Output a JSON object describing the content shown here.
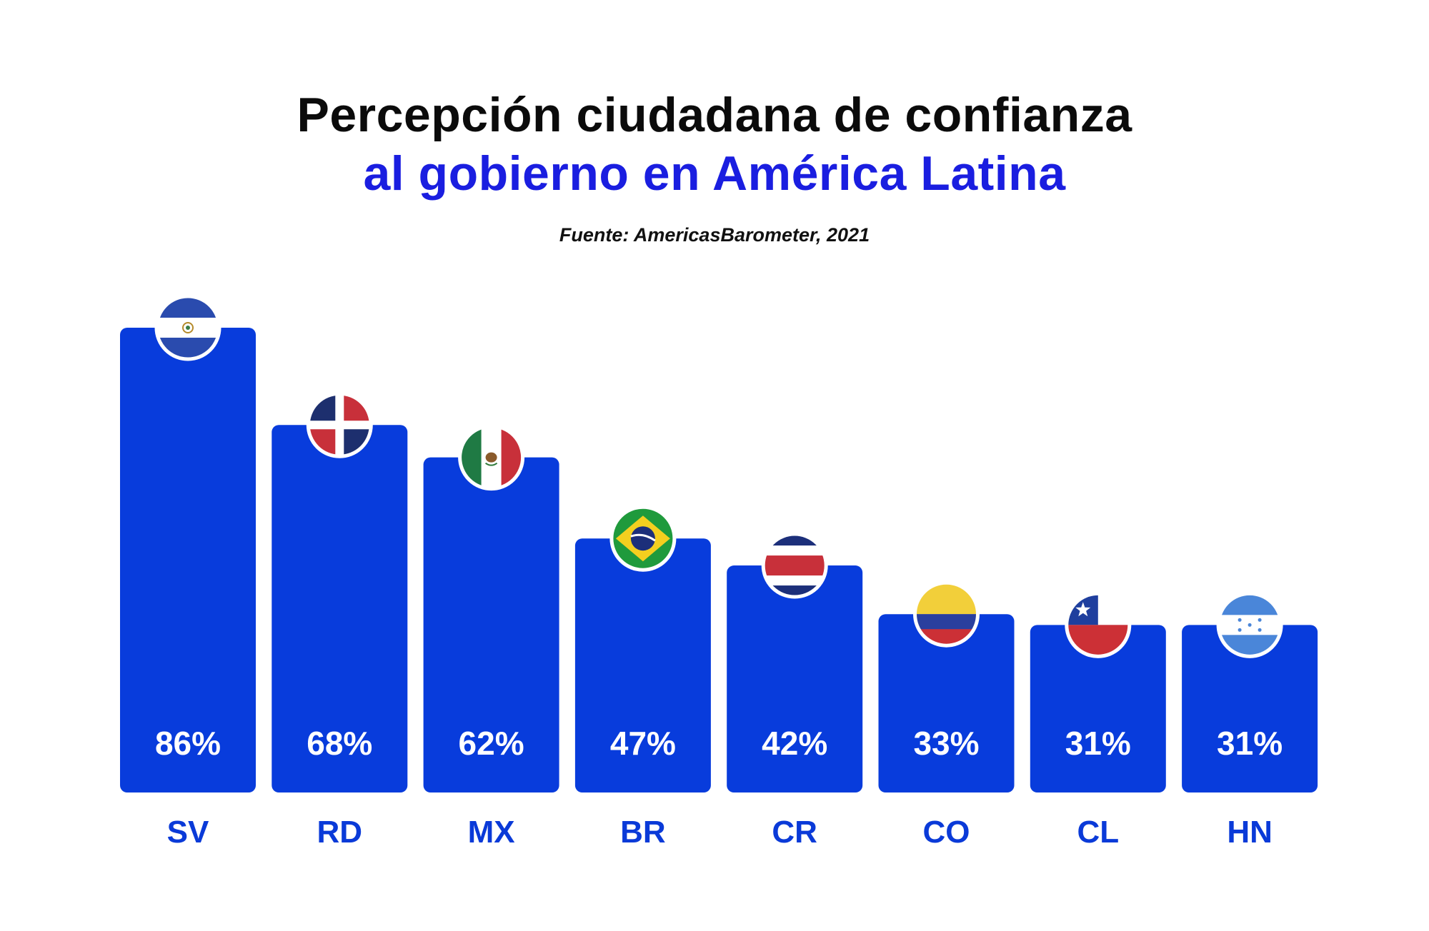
{
  "title": {
    "line1": "Percepción ciudadana de confianza",
    "line2": "al gobierno en América Latina"
  },
  "source": "Fuente: AmericasBarometer, 2021",
  "colors": {
    "bar": "#083cdc",
    "accent_text": "#1a1ee0",
    "category_label": "#0a3ad8",
    "value_label": "#ffffff",
    "title_dark": "#0b0b0b"
  },
  "chart_data": {
    "type": "bar",
    "categories": [
      "SV",
      "RD",
      "MX",
      "BR",
      "CR",
      "CO",
      "CL",
      "HN"
    ],
    "values": [
      86,
      68,
      62,
      47,
      42,
      33,
      31,
      31
    ],
    "value_labels": [
      "86%",
      "68%",
      "62%",
      "47%",
      "42%",
      "33%",
      "31%",
      "31%"
    ],
    "flags": [
      "el-salvador-flag-icon",
      "dominican-republic-flag-icon",
      "mexico-flag-icon",
      "brazil-flag-icon",
      "costa-rica-flag-icon",
      "colombia-flag-icon",
      "chile-flag-icon",
      "honduras-flag-icon"
    ],
    "title": "Percepción ciudadana de confianza al gobierno en América Latina",
    "xlabel": "",
    "ylabel": "",
    "grid": false,
    "legend": "none"
  }
}
